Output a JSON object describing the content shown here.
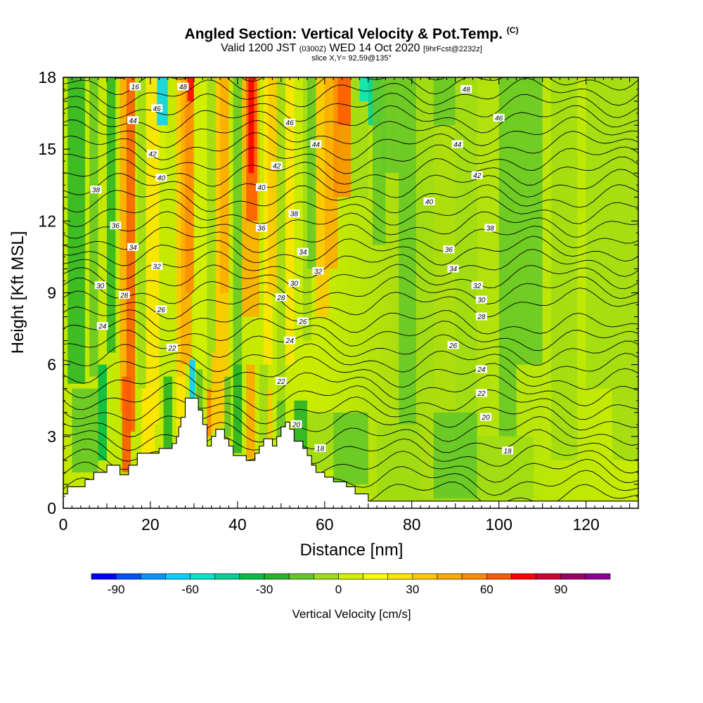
{
  "header": {
    "title": "Angled Section: Vertical Velocity & Pot.Temp.",
    "title_unit": "(C)",
    "valid_prefix": "Valid 1200 JST",
    "valid_z": "(0300Z)",
    "valid_date": "WED 14 Oct 2020",
    "forecast": "[9hrFcst@2232z]",
    "slice": "slice X,Y= 92,59@135°"
  },
  "chart_data": {
    "type": "heatmap",
    "xlabel": "Distance [nm]",
    "ylabel": "Height [Kft MSL]",
    "xlim": [
      0,
      132
    ],
    "ylim": [
      0,
      18
    ],
    "x_ticks": [
      "0",
      "20",
      "40",
      "60",
      "80",
      "100",
      "120"
    ],
    "x_tick_values": [
      0,
      20,
      40,
      60,
      80,
      100,
      120
    ],
    "y_ticks": [
      "0",
      "3",
      "6",
      "9",
      "12",
      "15",
      "18"
    ],
    "y_tick_values": [
      0,
      3,
      6,
      9,
      12,
      15,
      18
    ],
    "colorbar": {
      "label": "Vertical Velocity [cm/s]",
      "tick_labels": [
        "-90",
        "-60",
        "-30",
        "0",
        "30",
        "60",
        "90"
      ],
      "tick_values": [
        -90,
        -60,
        -30,
        0,
        30,
        60,
        90
      ],
      "range": [
        -100,
        110
      ],
      "colors": [
        "#0000ff",
        "#0050ff",
        "#0096ff",
        "#00d2ff",
        "#00e6c8",
        "#00d296",
        "#00be46",
        "#28b428",
        "#64c828",
        "#a0dc14",
        "#d2f000",
        "#ffff00",
        "#ffe600",
        "#ffc800",
        "#ffaa00",
        "#ff8c00",
        "#ff5a00",
        "#ff0000",
        "#d20032",
        "#a00064",
        "#8c0096"
      ]
    },
    "terrain": [
      [
        0,
        0.6
      ],
      [
        1,
        0.6
      ],
      [
        1,
        0.9
      ],
      [
        5,
        0.9
      ],
      [
        5,
        1.2
      ],
      [
        7,
        1.2
      ],
      [
        7,
        1.5
      ],
      [
        10,
        1.5
      ],
      [
        10,
        1.8
      ],
      [
        13,
        1.8
      ],
      [
        13,
        1.4
      ],
      [
        15,
        1.4
      ],
      [
        15,
        1.8
      ],
      [
        17,
        1.8
      ],
      [
        17,
        2.3
      ],
      [
        22,
        2.3
      ],
      [
        22,
        2.5
      ],
      [
        25,
        2.5
      ],
      [
        25,
        2.7
      ],
      [
        26,
        2.7
      ],
      [
        26,
        3
      ],
      [
        26.5,
        3
      ],
      [
        26.5,
        3.4
      ],
      [
        27,
        3.4
      ],
      [
        27,
        3.8
      ],
      [
        28,
        3.8
      ],
      [
        28,
        4.6
      ],
      [
        31,
        4.6
      ],
      [
        31,
        4.1
      ],
      [
        32,
        4.1
      ],
      [
        32,
        3.5
      ],
      [
        33,
        3.5
      ],
      [
        33,
        2.6
      ],
      [
        34,
        2.6
      ],
      [
        34,
        3.0
      ],
      [
        35,
        3.0
      ],
      [
        35,
        3.3
      ],
      [
        37,
        3.3
      ],
      [
        37,
        2.9
      ],
      [
        38,
        2.9
      ],
      [
        38,
        2.6
      ],
      [
        39,
        2.6
      ],
      [
        39,
        2.2
      ],
      [
        42,
        2.2
      ],
      [
        42,
        2.0
      ],
      [
        44,
        2.0
      ],
      [
        44,
        2.3
      ],
      [
        45,
        2.3
      ],
      [
        45,
        2.6
      ],
      [
        46,
        2.6
      ],
      [
        46,
        2.9
      ],
      [
        48,
        2.9
      ],
      [
        48,
        2.6
      ],
      [
        49,
        2.6
      ],
      [
        49,
        3.0
      ],
      [
        50,
        3.0
      ],
      [
        50,
        3.4
      ],
      [
        51,
        3.4
      ],
      [
        51,
        3.6
      ],
      [
        52,
        3.6
      ],
      [
        52,
        3.3
      ],
      [
        53,
        3.3
      ],
      [
        53,
        2.8
      ],
      [
        55,
        2.8
      ],
      [
        55,
        2.5
      ],
      [
        56,
        2.5
      ],
      [
        56,
        2.2
      ],
      [
        57,
        2.2
      ],
      [
        57,
        1.8
      ],
      [
        58,
        1.8
      ],
      [
        58,
        1.5
      ],
      [
        60,
        1.5
      ],
      [
        60,
        1.3
      ],
      [
        62,
        1.3
      ],
      [
        62,
        1.1
      ],
      [
        65,
        1.1
      ],
      [
        65,
        0.9
      ],
      [
        67,
        0.9
      ],
      [
        67,
        0.6
      ],
      [
        70,
        0.6
      ],
      [
        70,
        0.3
      ],
      [
        132,
        0.3
      ]
    ],
    "temperature_contours": {
      "label_values": [
        "16",
        "18",
        "20",
        "22",
        "24",
        "26",
        "28",
        "30",
        "32",
        "34",
        "36",
        "38",
        "40",
        "42",
        "44",
        "46",
        "48"
      ],
      "labels": [
        {
          "text": "16",
          "x": 16.5,
          "y": 17.6
        },
        {
          "text": "44",
          "x": 16,
          "y": 16.2
        },
        {
          "text": "46",
          "x": 21.5,
          "y": 16.7
        },
        {
          "text": "42",
          "x": 20.5,
          "y": 14.8
        },
        {
          "text": "40",
          "x": 22.5,
          "y": 13.8
        },
        {
          "text": "38",
          "x": 7.5,
          "y": 13.3
        },
        {
          "text": "36",
          "x": 12,
          "y": 11.8
        },
        {
          "text": "34",
          "x": 16,
          "y": 10.9
        },
        {
          "text": "32",
          "x": 21.5,
          "y": 10.1
        },
        {
          "text": "30",
          "x": 8.5,
          "y": 9.3
        },
        {
          "text": "28",
          "x": 14,
          "y": 8.9
        },
        {
          "text": "26",
          "x": 22.5,
          "y": 8.3
        },
        {
          "text": "24",
          "x": 9,
          "y": 7.6
        },
        {
          "text": "22",
          "x": 25,
          "y": 6.7
        },
        {
          "text": "48",
          "x": 27.5,
          "y": 17.6
        },
        {
          "text": "46",
          "x": 52,
          "y": 16.1
        },
        {
          "text": "44",
          "x": 58,
          "y": 15.2
        },
        {
          "text": "42",
          "x": 49,
          "y": 14.3
        },
        {
          "text": "40",
          "x": 45.5,
          "y": 13.4
        },
        {
          "text": "38",
          "x": 53,
          "y": 12.3
        },
        {
          "text": "36",
          "x": 45.5,
          "y": 11.7
        },
        {
          "text": "34",
          "x": 55,
          "y": 10.7
        },
        {
          "text": "32",
          "x": 58.5,
          "y": 9.9
        },
        {
          "text": "30",
          "x": 53,
          "y": 9.4
        },
        {
          "text": "28",
          "x": 50,
          "y": 8.8
        },
        {
          "text": "26",
          "x": 55,
          "y": 7.8
        },
        {
          "text": "24",
          "x": 52,
          "y": 7.0
        },
        {
          "text": "22",
          "x": 50,
          "y": 5.3
        },
        {
          "text": "20",
          "x": 53.5,
          "y": 3.5
        },
        {
          "text": "18",
          "x": 59,
          "y": 2.5
        },
        {
          "text": "48",
          "x": 92.5,
          "y": 17.5
        },
        {
          "text": "46",
          "x": 100,
          "y": 16.3
        },
        {
          "text": "44",
          "x": 90.5,
          "y": 15.2
        },
        {
          "text": "42",
          "x": 95,
          "y": 13.9
        },
        {
          "text": "40",
          "x": 84,
          "y": 12.8
        },
        {
          "text": "38",
          "x": 98,
          "y": 11.7
        },
        {
          "text": "36",
          "x": 88.5,
          "y": 10.8
        },
        {
          "text": "34",
          "x": 89.5,
          "y": 10.0
        },
        {
          "text": "32",
          "x": 95,
          "y": 9.3
        },
        {
          "text": "30",
          "x": 96,
          "y": 8.7
        },
        {
          "text": "28",
          "x": 96,
          "y": 8.0
        },
        {
          "text": "26",
          "x": 89.5,
          "y": 6.8
        },
        {
          "text": "24",
          "x": 96,
          "y": 5.8
        },
        {
          "text": "22",
          "x": 96,
          "y": 4.8
        },
        {
          "text": "20",
          "x": 97,
          "y": 3.8
        },
        {
          "text": "18",
          "x": 102,
          "y": 2.4
        }
      ]
    }
  }
}
